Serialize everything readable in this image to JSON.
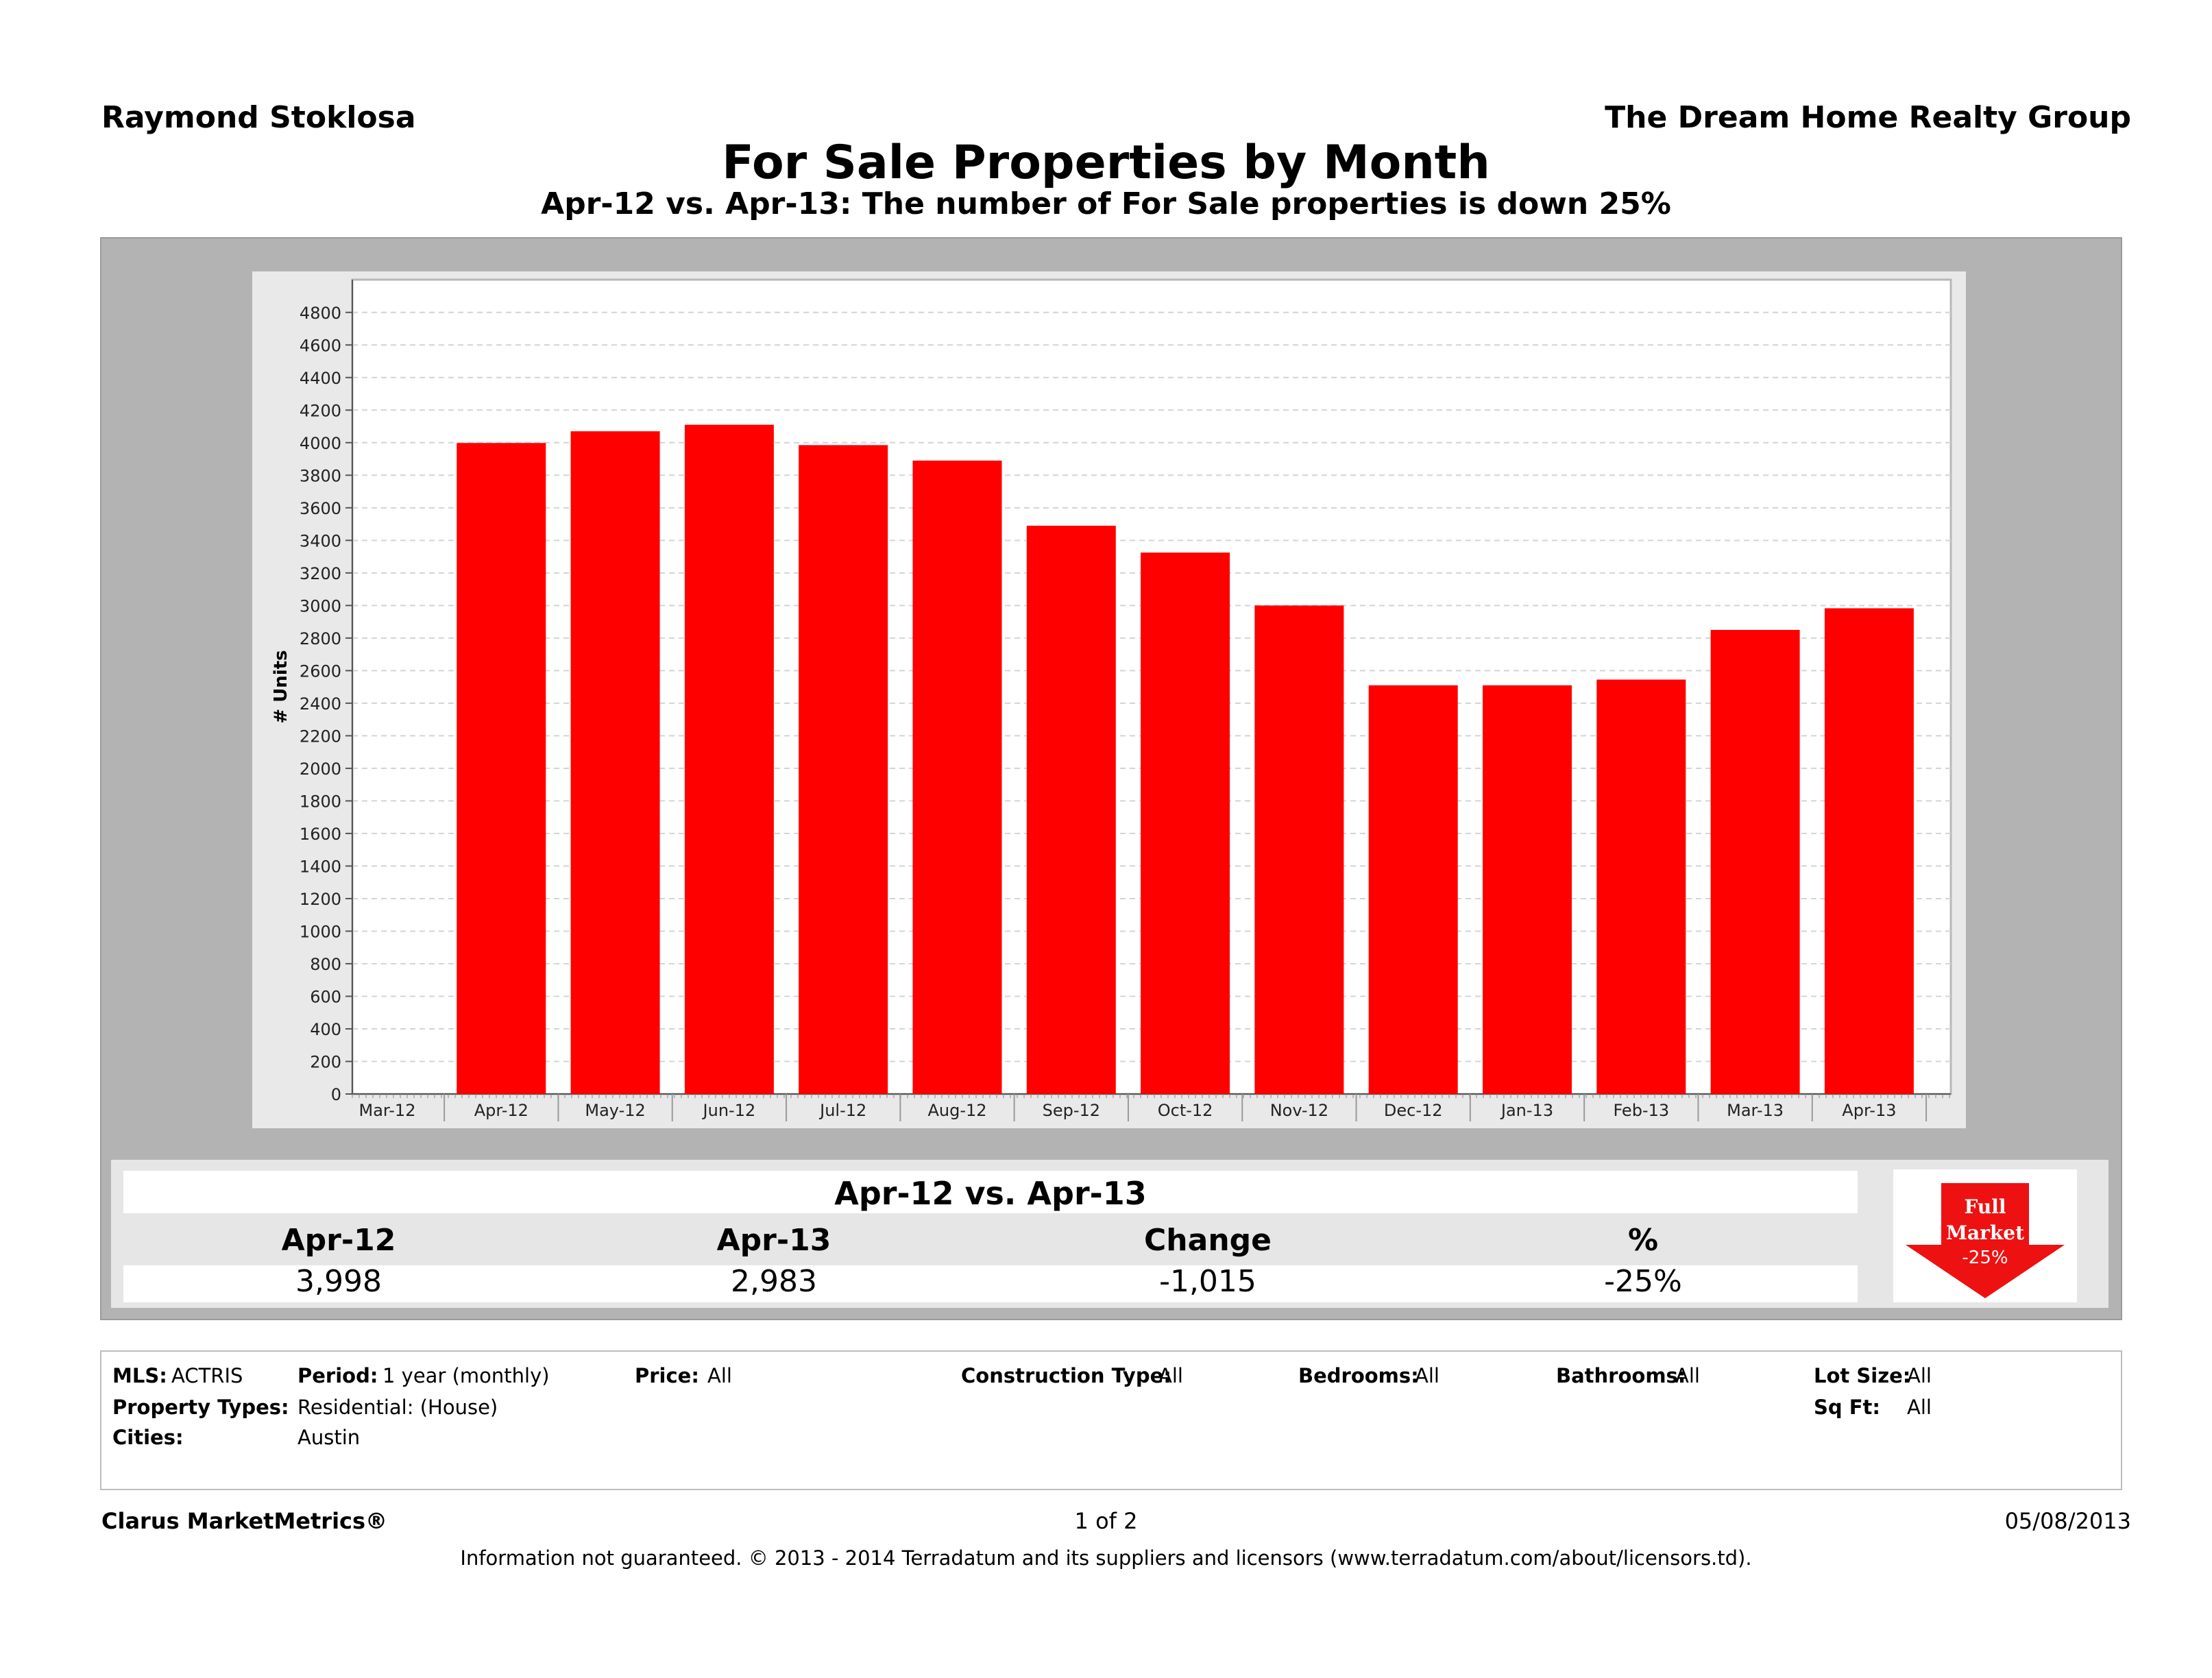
{
  "header": {
    "agent_name": "Raymond Stoklosa",
    "company": "The Dream Home Realty Group",
    "title": "For Sale Properties by Month",
    "subtitle": "Apr-12 vs. Apr-13: The number of For Sale properties is down 25%"
  },
  "chart_data": {
    "type": "bar",
    "title": "For Sale Properties by Month",
    "xlabel": "",
    "ylabel": "# Units",
    "ylim": [
      0,
      4900
    ],
    "yticks": [
      0,
      200,
      400,
      600,
      800,
      1000,
      1200,
      1400,
      1600,
      1800,
      2000,
      2200,
      2400,
      2600,
      2800,
      3000,
      3200,
      3400,
      3600,
      3800,
      4000,
      4200,
      4400,
      4600,
      4800
    ],
    "categories": [
      "Mar-12",
      "Apr-12",
      "May-12",
      "Jun-12",
      "Jul-12",
      "Aug-12",
      "Sep-12",
      "Oct-12",
      "Nov-12",
      "Dec-12",
      "Jan-13",
      "Feb-13",
      "Mar-13",
      "Apr-13"
    ],
    "values": [
      null,
      3998,
      4070,
      4110,
      3985,
      3890,
      3490,
      3325,
      3000,
      2510,
      2510,
      2545,
      2850,
      2983
    ],
    "bar_color": "#ff0000",
    "grid": true
  },
  "comparison": {
    "title": "Apr-12 vs. Apr-13",
    "headers": [
      "Apr-12",
      "Apr-13",
      "Change",
      "%"
    ],
    "values": [
      "3,998",
      "2,983",
      "-1,015",
      "-25%"
    ]
  },
  "badge": {
    "line1": "Full",
    "line2": "Market",
    "line3": "-25%",
    "color": "#ee1111"
  },
  "filters": {
    "mls_label": "MLS:",
    "mls_value": "ACTRIS",
    "period_label": "Period:",
    "period_value": "1 year (monthly)",
    "price_label": "Price:",
    "price_value": "All",
    "construction_label": "Construction Type:",
    "construction_value": "All",
    "bedrooms_label": "Bedrooms:",
    "bedrooms_value": "All",
    "bathrooms_label": "Bathrooms:",
    "bathrooms_value": "All",
    "lotsize_label": "Lot Size:",
    "lotsize_value": "All",
    "proptypes_label": "Property Types:",
    "proptypes_value": "Residential: (House)",
    "sqft_label": "Sq Ft:",
    "sqft_value": "All",
    "cities_label": "Cities:",
    "cities_value": "Austin"
  },
  "footer": {
    "brand": "Clarus MarketMetrics®",
    "page": "1 of 2",
    "date": "05/08/2013",
    "disclaimer": "Information not guaranteed.  © 2013 - 2014 Terradatum and its suppliers and licensors (www.terradatum.com/about/licensors.td)."
  }
}
